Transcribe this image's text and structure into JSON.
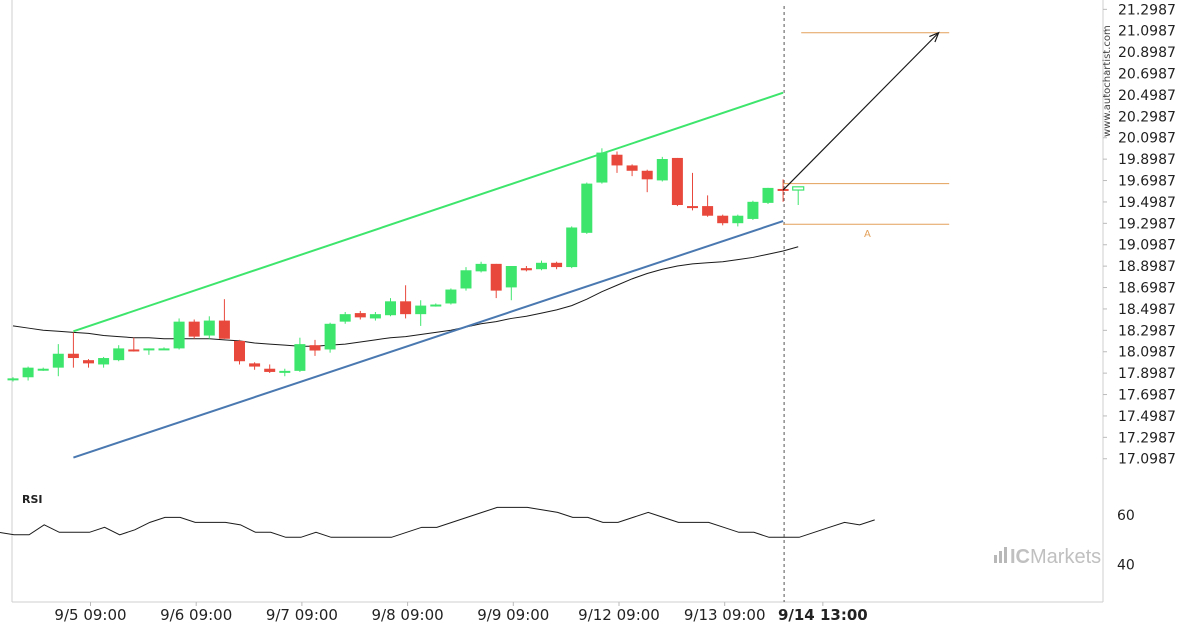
{
  "watermark_text": "www.autochartist.com",
  "brand": {
    "text_ic": "IC",
    "text_markets": "Markets"
  },
  "rsi_label": "RSI",
  "pattern_marker": "A",
  "colors": {
    "up": "#3ee56d",
    "down": "#e8483b",
    "channel_upper": "#3ee56d",
    "channel_lower": "#4a78b0",
    "moving_average": "#1a1a1a",
    "level_lines": "#e3a05a",
    "forecast_arrow": "#1a1a1a",
    "rsi_line": "#1a1a1a"
  },
  "chart_data": [
    {
      "type": "candlestick",
      "price_ticks": [
        "21.2987",
        "21.0987",
        "20.8987",
        "20.6987",
        "20.4987",
        "20.2987",
        "20.0987",
        "19.8987",
        "19.6987",
        "19.4987",
        "19.2987",
        "19.0987",
        "18.8987",
        "18.6987",
        "18.4987",
        "18.2987",
        "18.0987",
        "17.8987",
        "17.6987",
        "17.4987",
        "17.2987",
        "17.0987"
      ],
      "ylim": [
        16.9,
        21.33
      ],
      "time_labels": [
        "9/5 09:00",
        "9/6 09:00",
        "9/7 09:00",
        "9/8 09:00",
        "9/9 09:00",
        "9/12 09:00",
        "9/13 09:00",
        "9/14 13:00"
      ],
      "time_label_positions": [
        5,
        12,
        19,
        26,
        33,
        40,
        47,
        53.5
      ],
      "candles": [
        {
          "o": 17.84,
          "h": 17.86,
          "l": 17.82,
          "c": 17.85
        },
        {
          "o": 17.86,
          "h": 17.96,
          "l": 17.83,
          "c": 17.95
        },
        {
          "o": 17.93,
          "h": 17.95,
          "l": 17.92,
          "c": 17.94
        },
        {
          "o": 17.95,
          "h": 18.17,
          "l": 17.87,
          "c": 18.08
        },
        {
          "o": 18.08,
          "h": 18.28,
          "l": 17.95,
          "c": 18.04
        },
        {
          "o": 18.02,
          "h": 18.03,
          "l": 17.95,
          "c": 17.99
        },
        {
          "o": 17.98,
          "h": 18.05,
          "l": 17.95,
          "c": 18.04
        },
        {
          "o": 18.02,
          "h": 18.16,
          "l": 18.01,
          "c": 18.13
        },
        {
          "o": 18.12,
          "h": 18.23,
          "l": 18.1,
          "c": 18.11
        },
        {
          "o": 18.12,
          "h": 18.13,
          "l": 18.07,
          "c": 18.13
        },
        {
          "o": 18.13,
          "h": 18.14,
          "l": 18.12,
          "c": 18.13
        },
        {
          "o": 18.13,
          "h": 18.41,
          "l": 18.12,
          "c": 18.38
        },
        {
          "o": 18.38,
          "h": 18.4,
          "l": 18.22,
          "c": 18.24
        },
        {
          "o": 18.25,
          "h": 18.43,
          "l": 18.22,
          "c": 18.39
        },
        {
          "o": 18.39,
          "h": 18.59,
          "l": 18.22,
          "c": 18.22
        },
        {
          "o": 18.2,
          "h": 18.21,
          "l": 17.98,
          "c": 18.01
        },
        {
          "o": 17.99,
          "h": 18.0,
          "l": 17.93,
          "c": 17.96
        },
        {
          "o": 17.94,
          "h": 17.98,
          "l": 17.9,
          "c": 17.91
        },
        {
          "o": 17.91,
          "h": 17.94,
          "l": 17.87,
          "c": 17.92
        },
        {
          "o": 17.92,
          "h": 18.23,
          "l": 17.91,
          "c": 18.17
        },
        {
          "o": 18.16,
          "h": 18.21,
          "l": 18.06,
          "c": 18.11
        },
        {
          "o": 18.12,
          "h": 18.37,
          "l": 18.09,
          "c": 18.36
        },
        {
          "o": 18.38,
          "h": 18.47,
          "l": 18.36,
          "c": 18.45
        },
        {
          "o": 18.46,
          "h": 18.48,
          "l": 18.4,
          "c": 18.42
        },
        {
          "o": 18.41,
          "h": 18.47,
          "l": 18.39,
          "c": 18.45
        },
        {
          "o": 18.44,
          "h": 18.6,
          "l": 18.43,
          "c": 18.57
        },
        {
          "o": 18.57,
          "h": 18.72,
          "l": 18.41,
          "c": 18.45
        },
        {
          "o": 18.45,
          "h": 18.58,
          "l": 18.34,
          "c": 18.53
        },
        {
          "o": 18.53,
          "h": 18.55,
          "l": 18.52,
          "c": 18.54
        },
        {
          "o": 18.55,
          "h": 18.69,
          "l": 18.54,
          "c": 18.68
        },
        {
          "o": 18.69,
          "h": 18.89,
          "l": 18.67,
          "c": 18.86
        },
        {
          "o": 18.85,
          "h": 18.94,
          "l": 18.84,
          "c": 18.92
        },
        {
          "o": 18.92,
          "h": 18.92,
          "l": 18.6,
          "c": 18.67
        },
        {
          "o": 18.7,
          "h": 18.9,
          "l": 18.58,
          "c": 18.9
        },
        {
          "o": 18.88,
          "h": 18.9,
          "l": 18.85,
          "c": 18.86
        },
        {
          "o": 18.87,
          "h": 18.95,
          "l": 18.86,
          "c": 18.93
        },
        {
          "o": 18.93,
          "h": 18.94,
          "l": 18.87,
          "c": 18.89
        },
        {
          "o": 18.89,
          "h": 19.27,
          "l": 18.88,
          "c": 19.26
        },
        {
          "o": 19.21,
          "h": 19.68,
          "l": 19.2,
          "c": 19.67
        },
        {
          "o": 19.68,
          "h": 20.0,
          "l": 19.67,
          "c": 19.96
        },
        {
          "o": 19.94,
          "h": 19.97,
          "l": 19.77,
          "c": 19.84
        },
        {
          "o": 19.84,
          "h": 19.85,
          "l": 19.74,
          "c": 19.79
        },
        {
          "o": 19.79,
          "h": 19.8,
          "l": 19.59,
          "c": 19.71
        },
        {
          "o": 19.7,
          "h": 19.92,
          "l": 19.69,
          "c": 19.9
        },
        {
          "o": 19.91,
          "h": 19.91,
          "l": 19.46,
          "c": 19.47
        },
        {
          "o": 19.46,
          "h": 19.77,
          "l": 19.42,
          "c": 19.45
        },
        {
          "o": 19.46,
          "h": 19.56,
          "l": 19.36,
          "c": 19.37
        },
        {
          "o": 19.37,
          "h": 19.38,
          "l": 19.28,
          "c": 19.3
        },
        {
          "o": 19.3,
          "h": 19.38,
          "l": 19.27,
          "c": 19.37
        },
        {
          "o": 19.34,
          "h": 19.51,
          "l": 19.33,
          "c": 19.5
        },
        {
          "o": 19.49,
          "h": 19.63,
          "l": 19.48,
          "c": 19.63
        },
        {
          "o": 19.62,
          "h": 19.71,
          "l": 19.5,
          "c": 19.61
        },
        {
          "o": 19.61,
          "h": 19.64,
          "l": 19.47,
          "c": 19.64
        }
      ],
      "moving_average": [
        18.34,
        18.32,
        18.3,
        18.29,
        18.28,
        18.27,
        18.25,
        18.24,
        18.23,
        18.23,
        18.22,
        18.22,
        18.22,
        18.22,
        18.21,
        18.2,
        18.18,
        18.17,
        18.16,
        18.15,
        18.15,
        18.16,
        18.17,
        18.19,
        18.21,
        18.23,
        18.24,
        18.26,
        18.28,
        18.3,
        18.33,
        18.36,
        18.38,
        18.41,
        18.43,
        18.46,
        18.49,
        18.53,
        18.59,
        18.66,
        18.72,
        18.78,
        18.83,
        18.87,
        18.9,
        18.92,
        18.93,
        18.94,
        18.96,
        18.98,
        19.01,
        19.04,
        19.08
      ],
      "channel_upper": {
        "from": [
          4,
          18.29
        ],
        "to": [
          51,
          20.52
        ]
      },
      "channel_lower": {
        "from": [
          4,
          17.11
        ],
        "to": [
          51,
          19.32
        ]
      },
      "level_lines": [
        {
          "value": 21.08,
          "from": 52.2,
          "to": 62
        },
        {
          "value": 19.67,
          "from": 51,
          "to": 62
        },
        {
          "value": 19.29,
          "from": 51,
          "to": 62
        }
      ],
      "forecast_arrow": {
        "from": [
          51,
          19.61
        ],
        "to": [
          61.3,
          21.08
        ]
      },
      "current_time_index": 51
    },
    {
      "type": "line",
      "name": "RSI",
      "y_ticks": [
        "60",
        "40"
      ],
      "ylim": [
        25,
        70
      ],
      "values": [
        53,
        52,
        52,
        56,
        53,
        53,
        53,
        55,
        52,
        54,
        57,
        59,
        59,
        57,
        57,
        57,
        56,
        53,
        53,
        51,
        51,
        53,
        51,
        51,
        51,
        51,
        51,
        53,
        55,
        55,
        57,
        59,
        61,
        63,
        63,
        63,
        62,
        61,
        59,
        59,
        57,
        57,
        59,
        61,
        59,
        57,
        57,
        57,
        55,
        53,
        53,
        51,
        51,
        51,
        53,
        55,
        57,
        56,
        58
      ],
      "values_note_index_offset": -1
    }
  ]
}
